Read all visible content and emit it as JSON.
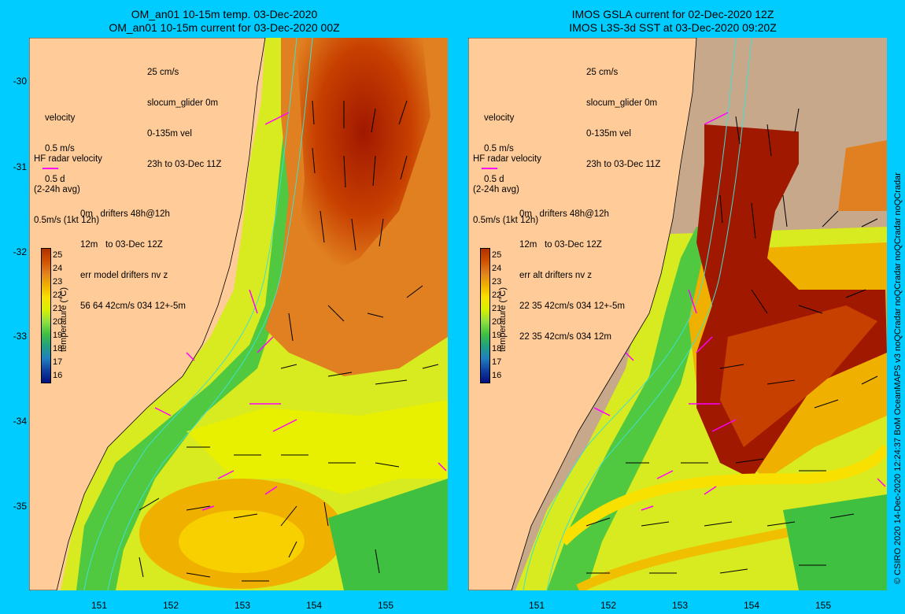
{
  "left": {
    "title_line1": "OM_an01 10-15m temp. 03-Dec-2020",
    "title_line2": "OM_an01 10-15m current for 03-Dec-2020 00Z",
    "legend_top": [
      "25 cm/s",
      "slocum_glider 0m",
      "0-135m vel",
      "23h to 03-Dec 11Z"
    ],
    "velocity": [
      "velocity",
      "0.5 m/s",
      "0.5 d"
    ],
    "hf_radar": [
      "HF radar velocity",
      "(2-24h avg)",
      "0.5m/s (1kt 12h)"
    ],
    "drifters": [
      "0m   drifters 48h@12h",
      "12m   to 03-Dec 12Z",
      "err model drifters nv z",
      "56 64 42cm/s 034 12+-5m"
    ]
  },
  "right": {
    "title_line1": "IMOS GSLA current for 02-Dec-2020 12Z",
    "title_line2": "IMOS L3S-3d SST at 03-Dec-2020 09:20Z",
    "legend_top": [
      "25 cm/s",
      "slocum_glider 0m",
      "0-135m vel",
      "23h to 03-Dec 11Z"
    ],
    "velocity": [
      "velocity",
      "0.5 m/s",
      "0.5 d"
    ],
    "hf_radar": [
      "HF radar velocity",
      "(2-24h avg)",
      "0.5m/s (1kt 12h)"
    ],
    "drifters": [
      "0m   drifters 48h@12h",
      "12m   to 03-Dec 12Z",
      "err alt drifters nv z",
      "22 35 42cm/s 034 12+-5m",
      "22 35 42cm/s 034 12m"
    ]
  },
  "colorbar": {
    "label": "temperature (°C)",
    "ticks": [
      "25",
      "24",
      "23",
      "22",
      "21",
      "20",
      "19",
      "18",
      "17",
      "16"
    ],
    "colors": [
      "#b03000",
      "#d05000",
      "#e08020",
      "#f0b000",
      "#f8e000",
      "#d8f000",
      "#90e040",
      "#40c040",
      "#20a080",
      "#2080c0",
      "#1040a0",
      "#001080"
    ]
  },
  "lat_ticks": [
    "-30",
    "-31",
    "-32",
    "-33",
    "-34",
    "-35"
  ],
  "lon_ticks": [
    "151",
    "152",
    "153",
    "154",
    "155"
  ],
  "credit": "© CSIRO 2020   14-Dec-2020 12:24:37 BoM OceanMAPS v3 noQCradar noQCradar noQCradar noQCradar",
  "colors": {
    "background": "#00ccff",
    "land": "#ffcc99",
    "cloud": "#c8a88a",
    "vector": "#000000",
    "drifter": "#ff00ff",
    "contour": "#40e0d0"
  }
}
